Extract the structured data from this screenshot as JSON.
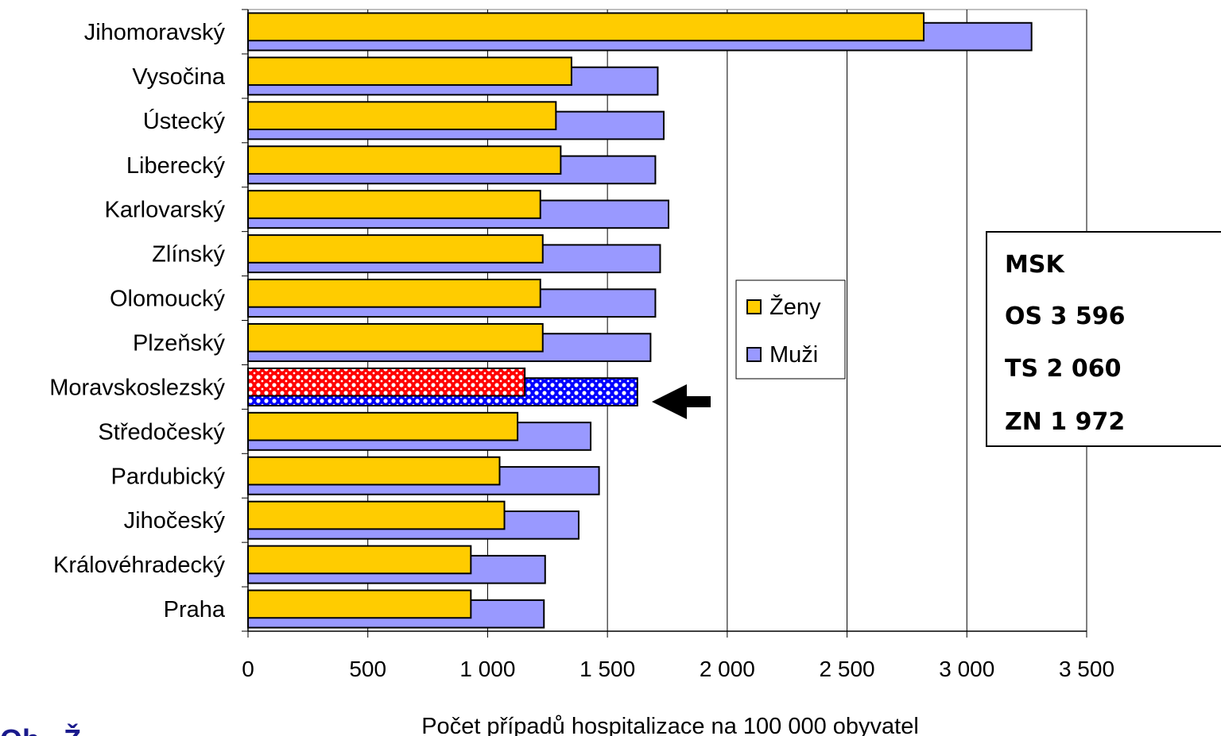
{
  "chart_data": {
    "type": "bar",
    "orientation": "horizontal",
    "categories": [
      "Jihomoravský",
      "Vysočina",
      "Ústecký",
      "Liberecký",
      "Karlovarský",
      "Zlínský",
      "Olomoucký",
      "Plzeňský",
      "Moravskoslezský",
      "Středočeský",
      "Pardubický",
      "Jihočeský",
      "Královéhradecký",
      "Praha"
    ],
    "series": [
      {
        "name": "Ženy",
        "color": "#ffcc00",
        "values": [
          2820,
          1350,
          1285,
          1305,
          1220,
          1230,
          1220,
          1230,
          1155,
          1125,
          1050,
          1070,
          930,
          930
        ]
      },
      {
        "name": "Muži",
        "color": "#9999ff",
        "values": [
          3270,
          1710,
          1735,
          1700,
          1755,
          1720,
          1700,
          1680,
          1625,
          1430,
          1465,
          1380,
          1240,
          1235
        ]
      }
    ],
    "highlight": {
      "category": "Moravskoslezský",
      "colors": {
        "Ženy": "#ff0000",
        "Muži": "#0000ff"
      }
    },
    "xlim": [
      0,
      3500
    ],
    "xticks": [
      0,
      500,
      1000,
      1500,
      2000,
      2500,
      3000,
      3500
    ],
    "xtick_labels": [
      "0",
      "500",
      "1 000",
      "1 500",
      "2 000",
      "2 500",
      "3 000",
      "3 500"
    ],
    "xlabel": "Počet případů hospitalizace na 100 000 obyvatel",
    "ylabel": "",
    "title": "",
    "grid": "vertical",
    "legend": {
      "placement": "center-right",
      "entries": [
        "Ženy",
        "Muži"
      ]
    },
    "annotations": [
      {
        "type": "arrow",
        "points_to": "Moravskoslezský"
      }
    ]
  },
  "info_box": {
    "lines": [
      "MSK",
      "OS 3 596",
      "TS 2 060",
      "ZN 1 972"
    ]
  },
  "footer_fragment": "Ob   Ž"
}
